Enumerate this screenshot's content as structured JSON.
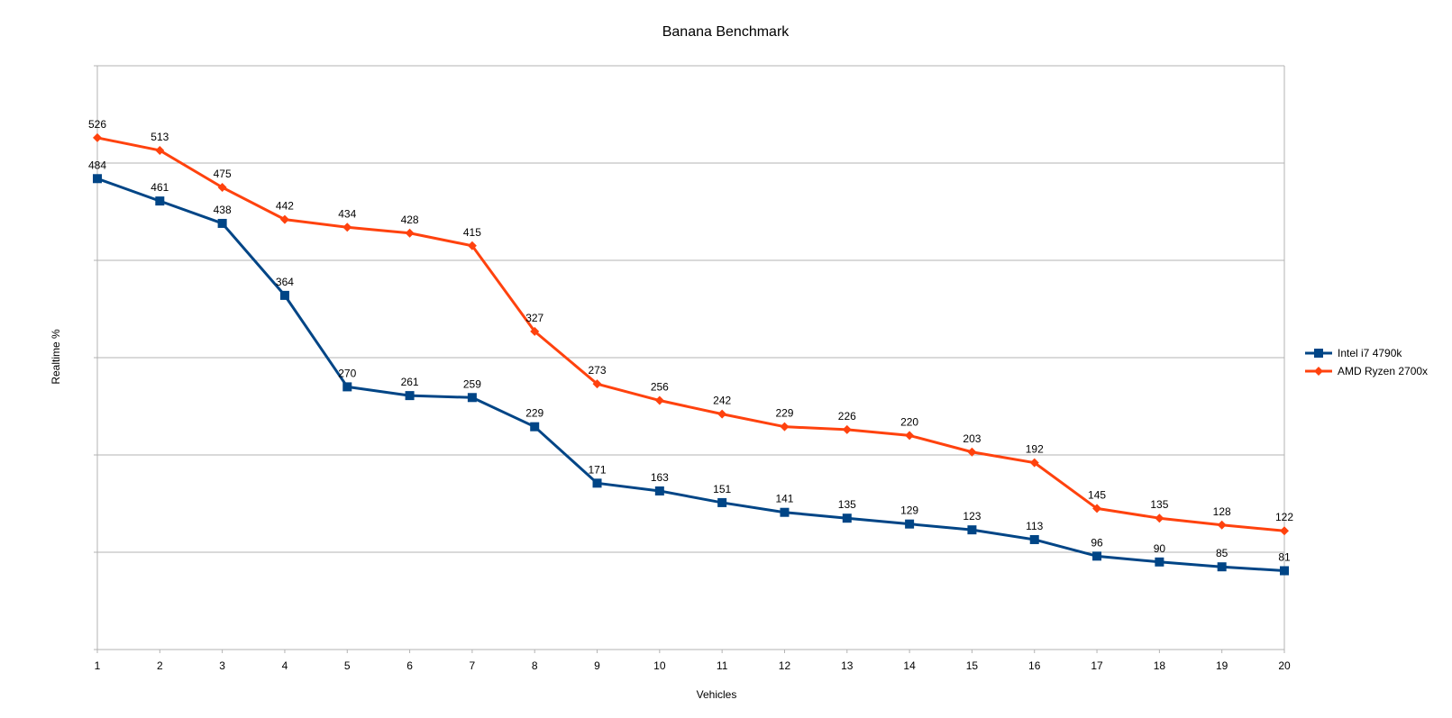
{
  "chart_data": {
    "type": "line",
    "title": "Banana Benchmark",
    "xlabel": "Vehicles",
    "ylabel": "Realtime %",
    "x": [
      1,
      2,
      3,
      4,
      5,
      6,
      7,
      8,
      9,
      10,
      11,
      12,
      13,
      14,
      15,
      16,
      17,
      18,
      19,
      20
    ],
    "ylim": [
      0,
      600
    ],
    "y_gridlines": [
      100,
      200,
      300,
      400,
      500
    ],
    "y_tick_labels_shown": false,
    "grid": true,
    "legend_position": "right",
    "series": [
      {
        "name": "Intel i7 4790k",
        "color": "#004586",
        "marker": "square",
        "values": [
          484,
          461,
          438,
          364,
          270,
          261,
          259,
          229,
          171,
          163,
          151,
          141,
          135,
          129,
          123,
          113,
          96,
          90,
          85,
          81
        ]
      },
      {
        "name": "AMD Ryzen 2700x",
        "color": "#ff420e",
        "marker": "diamond",
        "values": [
          526,
          513,
          475,
          442,
          434,
          428,
          415,
          327,
          273,
          256,
          242,
          229,
          226,
          220,
          203,
          192,
          145,
          135,
          128,
          122
        ]
      }
    ]
  }
}
